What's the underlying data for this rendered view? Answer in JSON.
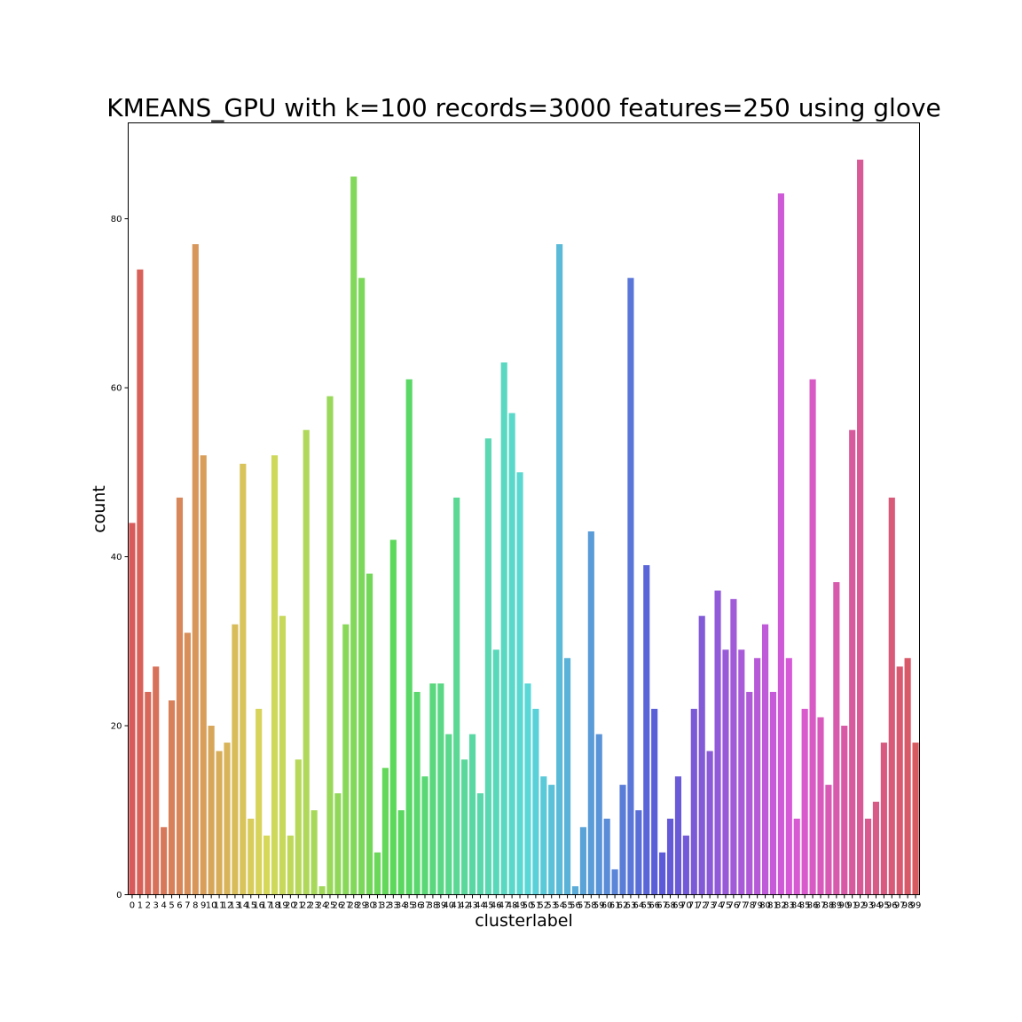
{
  "chart_data": {
    "type": "bar",
    "title": "KMEANS_GPU with k=100 records=3000 features=250 using glove",
    "xlabel": "clusterlabel",
    "ylabel": "count",
    "categories": [
      "0",
      "1",
      "2",
      "3",
      "4",
      "5",
      "6",
      "7",
      "8",
      "9",
      "10",
      "11",
      "12",
      "13",
      "14",
      "15",
      "16",
      "17",
      "18",
      "19",
      "20",
      "21",
      "22",
      "23",
      "24",
      "25",
      "26",
      "27",
      "28",
      "29",
      "30",
      "31",
      "32",
      "33",
      "34",
      "35",
      "36",
      "37",
      "38",
      "39",
      "40",
      "41",
      "42",
      "43",
      "44",
      "45",
      "46",
      "47",
      "48",
      "49",
      "50",
      "51",
      "52",
      "53",
      "54",
      "55",
      "56",
      "57",
      "58",
      "59",
      "60",
      "61",
      "62",
      "63",
      "64",
      "65",
      "66",
      "67",
      "68",
      "69",
      "70",
      "71",
      "72",
      "73",
      "74",
      "75",
      "76",
      "77",
      "78",
      "79",
      "80",
      "81",
      "82",
      "83",
      "84",
      "85",
      "86",
      "87",
      "88",
      "89",
      "90",
      "91",
      "92",
      "93",
      "94",
      "95",
      "96",
      "97",
      "98",
      "99"
    ],
    "values": [
      44,
      74,
      24,
      27,
      8,
      23,
      47,
      31,
      77,
      52,
      20,
      17,
      18,
      32,
      51,
      9,
      22,
      7,
      52,
      33,
      7,
      16,
      55,
      10,
      1,
      59,
      12,
      32,
      85,
      73,
      38,
      5,
      15,
      42,
      10,
      61,
      24,
      14,
      25,
      25,
      19,
      47,
      16,
      19,
      12,
      54,
      29,
      63,
      57,
      50,
      25,
      22,
      14,
      13,
      77,
      28,
      1,
      8,
      43,
      19,
      9,
      3,
      13,
      73,
      10,
      39,
      22,
      5,
      9,
      14,
      7,
      22,
      33,
      17,
      36,
      29,
      35,
      29,
      24,
      28,
      32,
      24,
      83,
      28,
      9,
      22,
      61,
      21,
      13,
      37,
      20,
      55,
      87,
      9,
      11,
      18,
      47,
      27,
      28,
      18
    ],
    "ylim": [
      0,
      91.35
    ],
    "yticks": [
      0,
      20,
      40,
      60,
      80
    ],
    "grid": false,
    "legend": "none"
  }
}
